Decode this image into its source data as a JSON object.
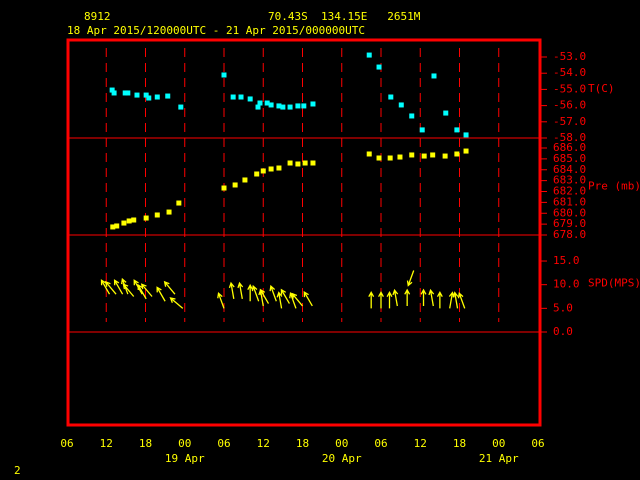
{
  "header": {
    "station": "8912",
    "location": "70.43S  134.15E   2651M",
    "period": "18 Apr 2015/120000UTC - 21 Apr 2015/000000UTC"
  },
  "x_axis": {
    "xlim": [
      0,
      72
    ],
    "xticks": [
      {
        "value": 0,
        "label": "06"
      },
      {
        "value": 6,
        "label": "12"
      },
      {
        "value": 12,
        "label": "18"
      },
      {
        "value": 18,
        "label": "00"
      },
      {
        "value": 24,
        "label": "06"
      },
      {
        "value": 30,
        "label": "12"
      },
      {
        "value": 36,
        "label": "18"
      },
      {
        "value": 42,
        "label": "00"
      },
      {
        "value": 48,
        "label": "06"
      },
      {
        "value": 54,
        "label": "12"
      },
      {
        "value": 60,
        "label": "18"
      },
      {
        "value": 66,
        "label": "00"
      },
      {
        "value": 72,
        "label": "06"
      }
    ],
    "date_labels": [
      {
        "value": 18,
        "label": "19 Apr"
      },
      {
        "value": 42,
        "label": "20 Apr"
      },
      {
        "value": 66,
        "label": "21 Apr"
      }
    ]
  },
  "page_number": "2",
  "chart_data": [
    {
      "type": "scatter",
      "label": "T(C)",
      "color": "#00ffff",
      "ylim": [
        -58,
        -51.95
      ],
      "yticks": [
        {
          "value": -53,
          "label": "-53.0"
        },
        {
          "value": -54,
          "label": "-54.0"
        },
        {
          "value": -55,
          "label": "-55.0"
        },
        {
          "value": -56,
          "label": "-56.0"
        },
        {
          "value": -57,
          "label": "-57.0"
        },
        {
          "value": -58,
          "label": "-58.0"
        }
      ],
      "x": [
        6.9,
        7.2,
        8.9,
        9.3,
        10.7,
        12.1,
        12.5,
        13.8,
        15.4,
        17.4,
        24.0,
        25.4,
        26.6,
        28.0,
        29.2,
        29.5,
        30.6,
        31.2,
        32.4,
        33.0,
        34.1,
        35.3,
        36.2,
        37.6,
        46.2,
        47.7,
        49.5,
        51.1,
        52.7,
        54.3,
        56.1,
        57.9,
        59.6,
        61.0
      ],
      "values": [
        -55.04,
        -55.22,
        -55.22,
        -55.22,
        -55.35,
        -55.35,
        -55.53,
        -55.47,
        -55.41,
        -56.09,
        -54.11,
        -55.47,
        -55.47,
        -55.59,
        -56.09,
        -55.84,
        -55.84,
        -55.96,
        -56.02,
        -56.09,
        -56.09,
        -56.02,
        -56.02,
        -55.9,
        -52.88,
        -53.62,
        -55.47,
        -55.96,
        -56.64,
        -57.5,
        -54.17,
        -56.46,
        -57.5,
        -57.81
      ]
    },
    {
      "type": "scatter",
      "label": "Pre (mb)",
      "color": "#ffff00",
      "ylim": [
        678,
        686.92
      ],
      "yticks": [
        {
          "value": 678,
          "label": "678.0"
        },
        {
          "value": 679,
          "label": "679.0"
        },
        {
          "value": 680,
          "label": "680.0"
        },
        {
          "value": 681,
          "label": "681.0"
        },
        {
          "value": 682,
          "label": "682.0"
        },
        {
          "value": 683,
          "label": "683.0"
        },
        {
          "value": 684,
          "label": "684.0"
        },
        {
          "value": 685,
          "label": "685.0"
        },
        {
          "value": 686,
          "label": "686.0"
        }
      ],
      "x": [
        7.0,
        7.6,
        8.7,
        9.5,
        10.2,
        12.1,
        13.8,
        15.6,
        17.1,
        24.0,
        25.7,
        27.2,
        29.0,
        30.0,
        31.2,
        32.4,
        34.1,
        35.3,
        36.4,
        37.6,
        46.2,
        47.7,
        49.4,
        50.9,
        52.7,
        54.6,
        55.9,
        57.8,
        59.6,
        61.0
      ],
      "values": [
        678.74,
        678.83,
        679.1,
        679.29,
        679.38,
        679.56,
        679.84,
        680.11,
        680.94,
        682.32,
        682.6,
        683.06,
        683.61,
        683.89,
        684.07,
        684.16,
        684.62,
        684.53,
        684.62,
        684.62,
        685.45,
        685.08,
        685.08,
        685.17,
        685.36,
        685.26,
        685.36,
        685.26,
        685.45,
        685.72
      ]
    },
    {
      "type": "wind",
      "label": "SPD(MPS)",
      "color": "#ffff00",
      "ylim": [
        0,
        20.5
      ],
      "yticks": [
        {
          "value": 0,
          "label": "0.0"
        },
        {
          "value": 5,
          "label": "5.0"
        },
        {
          "value": 10,
          "label": "10.0"
        },
        {
          "value": 15,
          "label": "15.0"
        }
      ],
      "x": [
        6.5,
        7.5,
        8.5,
        9.3,
        10.2,
        11.5,
        12.1,
        13.0,
        15.0,
        16.5,
        17.7,
        24.0,
        25.5,
        26.8,
        28.0,
        29.3,
        30.0,
        30.8,
        32.0,
        32.8,
        34.0,
        35.0,
        36.0,
        37.5,
        46.5,
        48.0,
        49.3,
        50.5,
        52.0,
        53.0,
        54.5,
        56.0,
        57.0,
        58.5,
        59.7,
        60.8
      ],
      "values": [
        8,
        8,
        8,
        8,
        7.5,
        8,
        7,
        7.5,
        6.5,
        8,
        5,
        5,
        7,
        7,
        6.5,
        6.5,
        5.5,
        6,
        6.5,
        5,
        6,
        5,
        5.5,
        5.5,
        5,
        5,
        5,
        5.5,
        5.5,
        13,
        5.5,
        5.5,
        5,
        5,
        5,
        5
      ],
      "directions": [
        330,
        320,
        330,
        340,
        320,
        330,
        330,
        320,
        330,
        320,
        310,
        340,
        350,
        350,
        0,
        340,
        350,
        330,
        340,
        350,
        330,
        340,
        320,
        330,
        0,
        0,
        0,
        350,
        0,
        200,
        0,
        350,
        0,
        10,
        350,
        340
      ]
    }
  ]
}
